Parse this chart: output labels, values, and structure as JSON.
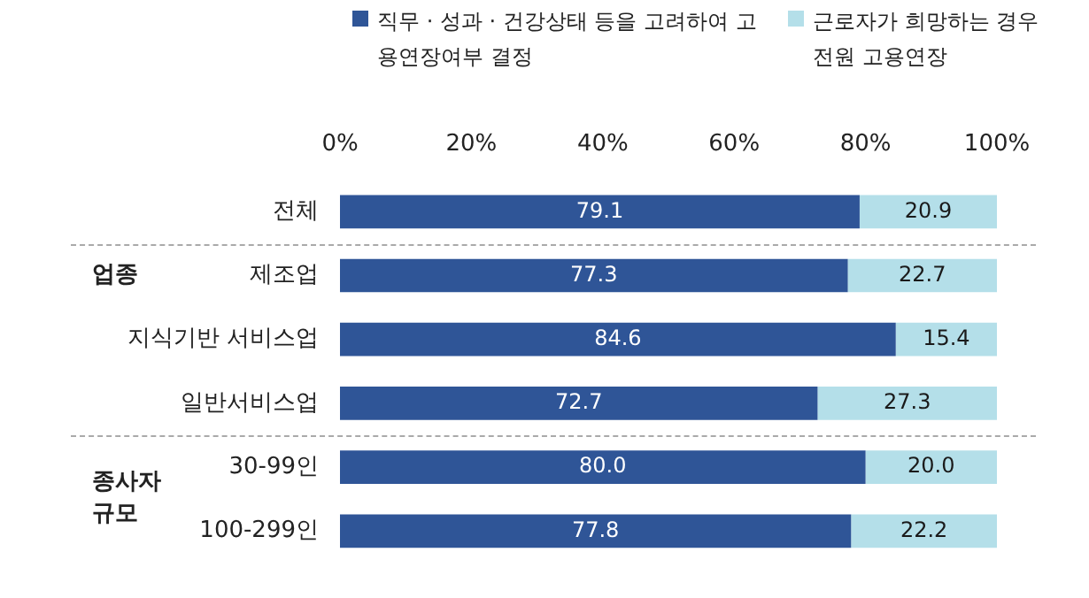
{
  "chart_data": {
    "type": "bar",
    "orientation": "horizontal",
    "stacked": true,
    "categories": [
      "전체",
      "제조업",
      "지식기반 서비스업",
      "일반서비스업",
      "30-99인",
      "100-299인"
    ],
    "series": [
      {
        "name": "직무 · 성과 · 건강상태  등을 고려하여 고용연장여부 결정",
        "color": "#2f5597",
        "values": [
          79.1,
          77.3,
          84.6,
          72.7,
          80.0,
          77.8
        ]
      },
      {
        "name": "근로자가 희망하는 경우 전원 고용연장",
        "color": "#b4dfe9",
        "values": [
          20.9,
          22.7,
          15.4,
          27.3,
          20.0,
          22.2
        ]
      }
    ],
    "xlim": [
      0,
      100
    ],
    "xticks": [
      {
        "value": 0,
        "label": "0%"
      },
      {
        "value": 20,
        "label": "20%"
      },
      {
        "value": 40,
        "label": "40%"
      },
      {
        "value": 60,
        "label": "60%"
      },
      {
        "value": 80,
        "label": "80%"
      },
      {
        "value": 100,
        "label": "100%"
      }
    ],
    "value_labels": [
      [
        "79.1",
        "77.3",
        "84.6",
        "72.7",
        "80.0",
        "77.8"
      ],
      [
        "20.9",
        "22.7",
        "15.4",
        "27.3",
        "20.0",
        "22.2"
      ]
    ],
    "annotations": [
      "업종",
      "종사자 규모"
    ],
    "grid": false,
    "legend": "top right"
  }
}
